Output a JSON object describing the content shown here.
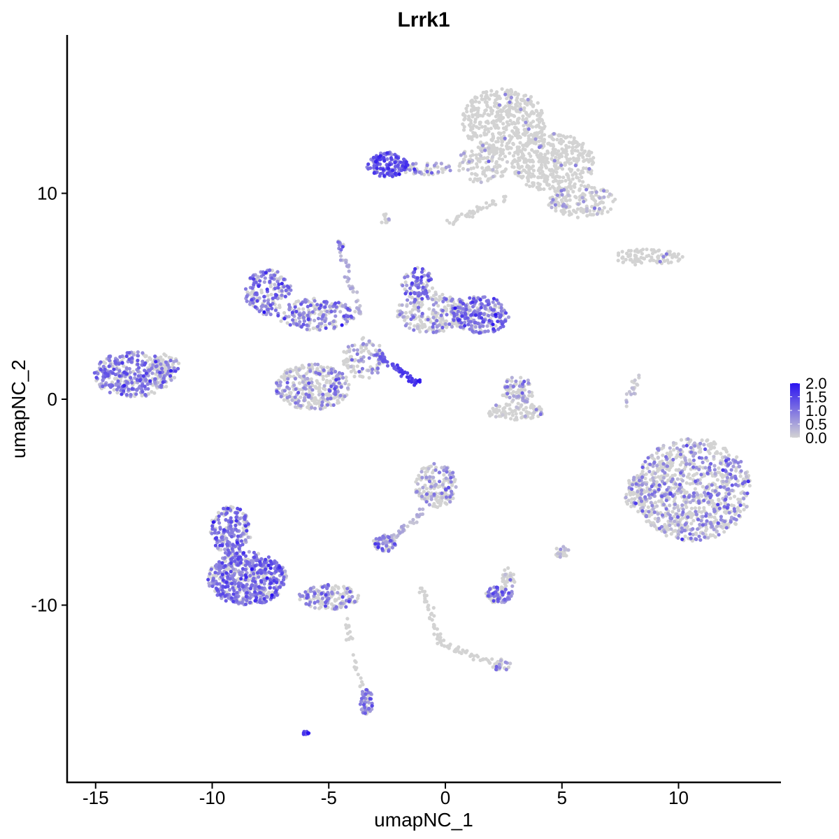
{
  "chart_data": {
    "type": "scatter",
    "title": "Lrrk1",
    "xlabel": "umapNC_1",
    "ylabel": "umapNC_2",
    "xlim": [
      -16.5,
      14.5
    ],
    "ylim": [
      -18.5,
      17.5
    ],
    "x_ticks": [
      -15,
      -10,
      -5,
      0,
      5,
      10
    ],
    "x_tick_labels": [
      "-15",
      "-10",
      "-5",
      "0",
      "5",
      "10"
    ],
    "y_ticks": [
      -10,
      0,
      10
    ],
    "y_tick_labels": [
      "-10",
      "0",
      "10"
    ],
    "grid": false,
    "legend": {
      "position": "right",
      "type": "colorbar",
      "min": 0.0,
      "max": 2.0,
      "labels": [
        "2.0",
        "1.5",
        "1.0",
        "0.5",
        "0.0"
      ],
      "color_low": "#d3d3d3",
      "color_high": "#2b14f0"
    },
    "colors": {
      "low": "#d3d3d3",
      "high": "#2b14f0"
    },
    "clusters": [
      {
        "cx": 2.5,
        "cy": 13.5,
        "rx": 1.8,
        "ry": 1.6,
        "n": 420,
        "expr": 0.03
      },
      {
        "cx": 4.6,
        "cy": 11.5,
        "rx": 1.8,
        "ry": 1.4,
        "n": 380,
        "expr": 0.04
      },
      {
        "cx": 5.8,
        "cy": 9.6,
        "rx": 1.5,
        "ry": 0.8,
        "n": 160,
        "expr": 0.1
      },
      {
        "cx": 1.6,
        "cy": 11.4,
        "rx": 1.1,
        "ry": 0.9,
        "n": 120,
        "expr": 0.08
      },
      {
        "cx": -2.5,
        "cy": 11.4,
        "rx": 0.9,
        "ry": 0.6,
        "n": 150,
        "expr": 0.85
      },
      {
        "cx": -0.8,
        "cy": 11.2,
        "rx": 1.2,
        "ry": 0.3,
        "n": 50,
        "expr": 0.45
      },
      {
        "cx": 8.7,
        "cy": 6.9,
        "rx": 1.5,
        "ry": 0.4,
        "n": 90,
        "expr": 0.03
      },
      {
        "cx": -13.4,
        "cy": 1.2,
        "rx": 1.7,
        "ry": 1.1,
        "n": 360,
        "expr": 0.55
      },
      {
        "cx": -12.0,
        "cy": 1.5,
        "rx": 0.6,
        "ry": 0.7,
        "n": 60,
        "expr": 0.2
      },
      {
        "cx": -7.6,
        "cy": 5.2,
        "rx": 1.0,
        "ry": 1.1,
        "n": 170,
        "expr": 0.65
      },
      {
        "cx": -5.5,
        "cy": 4.1,
        "rx": 1.7,
        "ry": 0.8,
        "n": 200,
        "expr": 0.5
      },
      {
        "cx": -0.5,
        "cy": 4.2,
        "rx": 1.6,
        "ry": 1.0,
        "n": 220,
        "expr": 0.35
      },
      {
        "cx": 1.5,
        "cy": 4.1,
        "rx": 1.3,
        "ry": 0.9,
        "n": 220,
        "expr": 0.7
      },
      {
        "cx": -1.2,
        "cy": 5.6,
        "rx": 0.7,
        "ry": 0.8,
        "n": 80,
        "expr": 0.6
      },
      {
        "cx": -5.7,
        "cy": 0.6,
        "rx": 1.6,
        "ry": 1.1,
        "n": 330,
        "expr": 0.35
      },
      {
        "cx": -3.5,
        "cy": 2.0,
        "rx": 0.9,
        "ry": 1.0,
        "n": 110,
        "expr": 0.3
      },
      {
        "cx": 3.1,
        "cy": 0.4,
        "rx": 0.7,
        "ry": 0.7,
        "n": 80,
        "expr": 0.3
      },
      {
        "cx": 3.0,
        "cy": -0.6,
        "rx": 1.3,
        "ry": 0.4,
        "n": 90,
        "expr": 0.15
      },
      {
        "cx": 10.6,
        "cy": -4.4,
        "rx": 2.5,
        "ry": 2.5,
        "n": 900,
        "expr": 0.35
      },
      {
        "cx": 8.2,
        "cy": -4.6,
        "rx": 0.5,
        "ry": 0.9,
        "n": 60,
        "expr": 0.15
      },
      {
        "cx": -8.5,
        "cy": -8.7,
        "rx": 1.7,
        "ry": 1.3,
        "n": 550,
        "expr": 0.65
      },
      {
        "cx": -9.2,
        "cy": -6.4,
        "rx": 0.9,
        "ry": 1.2,
        "n": 200,
        "expr": 0.6
      },
      {
        "cx": -5.0,
        "cy": -9.6,
        "rx": 1.3,
        "ry": 0.6,
        "n": 150,
        "expr": 0.5
      },
      {
        "cx": -0.4,
        "cy": -4.2,
        "rx": 0.9,
        "ry": 1.1,
        "n": 170,
        "expr": 0.3
      },
      {
        "cx": -2.6,
        "cy": -7.0,
        "rx": 0.5,
        "ry": 0.4,
        "n": 60,
        "expr": 0.55
      },
      {
        "cx": 2.3,
        "cy": -9.5,
        "rx": 0.6,
        "ry": 0.4,
        "n": 80,
        "expr": 0.6
      },
      {
        "cx": 2.7,
        "cy": -8.7,
        "rx": 0.3,
        "ry": 0.5,
        "n": 30,
        "expr": 0.2
      },
      {
        "cx": -3.4,
        "cy": -14.7,
        "rx": 0.3,
        "ry": 0.6,
        "n": 60,
        "expr": 0.55
      },
      {
        "cx": 5.0,
        "cy": -7.4,
        "rx": 0.3,
        "ry": 0.3,
        "n": 25,
        "expr": 0.4
      },
      {
        "cx": 2.4,
        "cy": -12.9,
        "rx": 0.4,
        "ry": 0.3,
        "n": 25,
        "expr": 0.4
      },
      {
        "cx": -2.6,
        "cy": 8.8,
        "rx": 0.2,
        "ry": 0.3,
        "n": 12,
        "expr": 0.3
      },
      {
        "cx": -4.5,
        "cy": 7.5,
        "rx": 0.15,
        "ry": 0.25,
        "n": 12,
        "expr": 0.5
      },
      {
        "cx": -6.0,
        "cy": -16.2,
        "rx": 0.15,
        "ry": 0.1,
        "n": 8,
        "expr": 1.2
      }
    ],
    "trails": [
      {
        "x0": -3.0,
        "y0": 2.2,
        "x1": -1.2,
        "y1": 0.8,
        "n": 60,
        "expr": 1.6
      },
      {
        "x0": -3.6,
        "y0": 4.0,
        "x1": -4.5,
        "y1": 7.2,
        "n": 35,
        "expr": 0.4
      },
      {
        "x0": -1.0,
        "y0": -5.5,
        "x1": -2.3,
        "y1": -6.8,
        "n": 30,
        "expr": 0.25
      },
      {
        "x0": -1.0,
        "y0": -9.2,
        "x1": -0.2,
        "y1": -11.9,
        "n": 40,
        "expr": 0.05
      },
      {
        "x0": -0.2,
        "y0": -11.9,
        "x1": 2.4,
        "y1": -12.9,
        "n": 40,
        "expr": 0.05
      },
      {
        "x0": -4.3,
        "y0": -10.6,
        "x1": -3.6,
        "y1": -14.0,
        "n": 25,
        "expr": 0.05
      },
      {
        "x0": 8.2,
        "y0": 1.1,
        "x1": 7.7,
        "y1": -0.5,
        "n": 20,
        "expr": 0.15
      },
      {
        "x0": 0.2,
        "y0": 8.6,
        "x1": 2.6,
        "y1": 9.8,
        "n": 40,
        "expr": 0.05
      }
    ]
  }
}
